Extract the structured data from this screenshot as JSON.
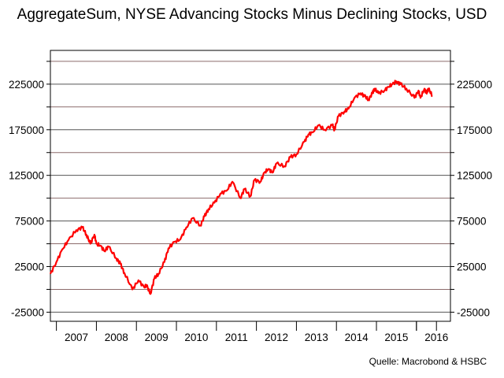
{
  "title": "AggregateSum, NYSE Advancing Stocks Minus Declining Stocks, USD",
  "source": "Quelle: Macrobond & HSBC",
  "chart_data": {
    "type": "line",
    "title": "AggregateSum, NYSE Advancing Stocks Minus Declining Stocks, USD",
    "xlabel": "",
    "ylabel": "",
    "xlim": [
      2006.35,
      2016.35
    ],
    "ylim": [
      -35000,
      262000
    ],
    "yticks": [
      -25000,
      25000,
      75000,
      125000,
      175000,
      225000
    ],
    "ytick_labels": [
      "-25000",
      "25000",
      "75000",
      "125000",
      "175000",
      "225000"
    ],
    "xtick_labels": [
      "2007",
      "2008",
      "2009",
      "2010",
      "2011",
      "2012",
      "2013",
      "2014",
      "2015",
      "2016"
    ],
    "grid": true,
    "line_color": "#ff0000",
    "series": [
      {
        "x": [
          2006.35,
          2006.5,
          2006.65,
          2006.8,
          2007.0,
          2007.15,
          2007.25,
          2007.35,
          2007.45,
          2007.5,
          2007.6,
          2007.7,
          2007.8,
          2008.0,
          2008.1,
          2008.2,
          2008.4,
          2008.55,
          2008.7,
          2008.75,
          2008.85,
          2008.95,
          2009.05,
          2009.2,
          2009.3,
          2009.45,
          2009.6,
          2009.75,
          2009.9,
          2010.1,
          2010.2,
          2010.3,
          2010.45,
          2010.6,
          2010.75,
          2010.9,
          2011.1,
          2011.2,
          2011.35,
          2011.45,
          2011.6,
          2011.7,
          2011.8,
          2011.9,
          2012.0,
          2012.2,
          2012.35,
          2012.5,
          2012.7,
          2012.8,
          2012.9,
          2013.05,
          2013.2,
          2013.4,
          2013.45,
          2013.55,
          2013.7,
          2013.8,
          2013.95,
          2014.1,
          2014.2,
          2014.3,
          2014.4,
          2014.45,
          2014.55,
          2014.7,
          2014.8,
          2014.9,
          2015.0,
          2015.1,
          2015.25,
          2015.45,
          2015.55,
          2015.6,
          2015.7,
          2015.75,
          2015.8,
          2015.9
        ],
        "y": [
          17000,
          30000,
          44000,
          54000,
          65000,
          68000,
          60000,
          50000,
          60000,
          50000,
          48000,
          42000,
          47000,
          34000,
          28000,
          18000,
          0,
          10000,
          2000,
          5000,
          -5000,
          12000,
          17000,
          30000,
          45000,
          52000,
          55000,
          68000,
          78000,
          70000,
          80000,
          88000,
          95000,
          105000,
          108000,
          118000,
          100000,
          110000,
          102000,
          120000,
          118000,
          128000,
          132000,
          128000,
          138000,
          135000,
          145000,
          148000,
          162000,
          170000,
          172000,
          180000,
          175000,
          180000,
          175000,
          190000,
          195000,
          198000,
          210000,
          215000,
          212000,
          208000,
          215000,
          220000,
          215000,
          218000,
          222000,
          225000,
          228000,
          225000,
          220000,
          210000,
          218000,
          210000,
          220000,
          215000,
          220000,
          212000
        ]
      }
    ]
  }
}
